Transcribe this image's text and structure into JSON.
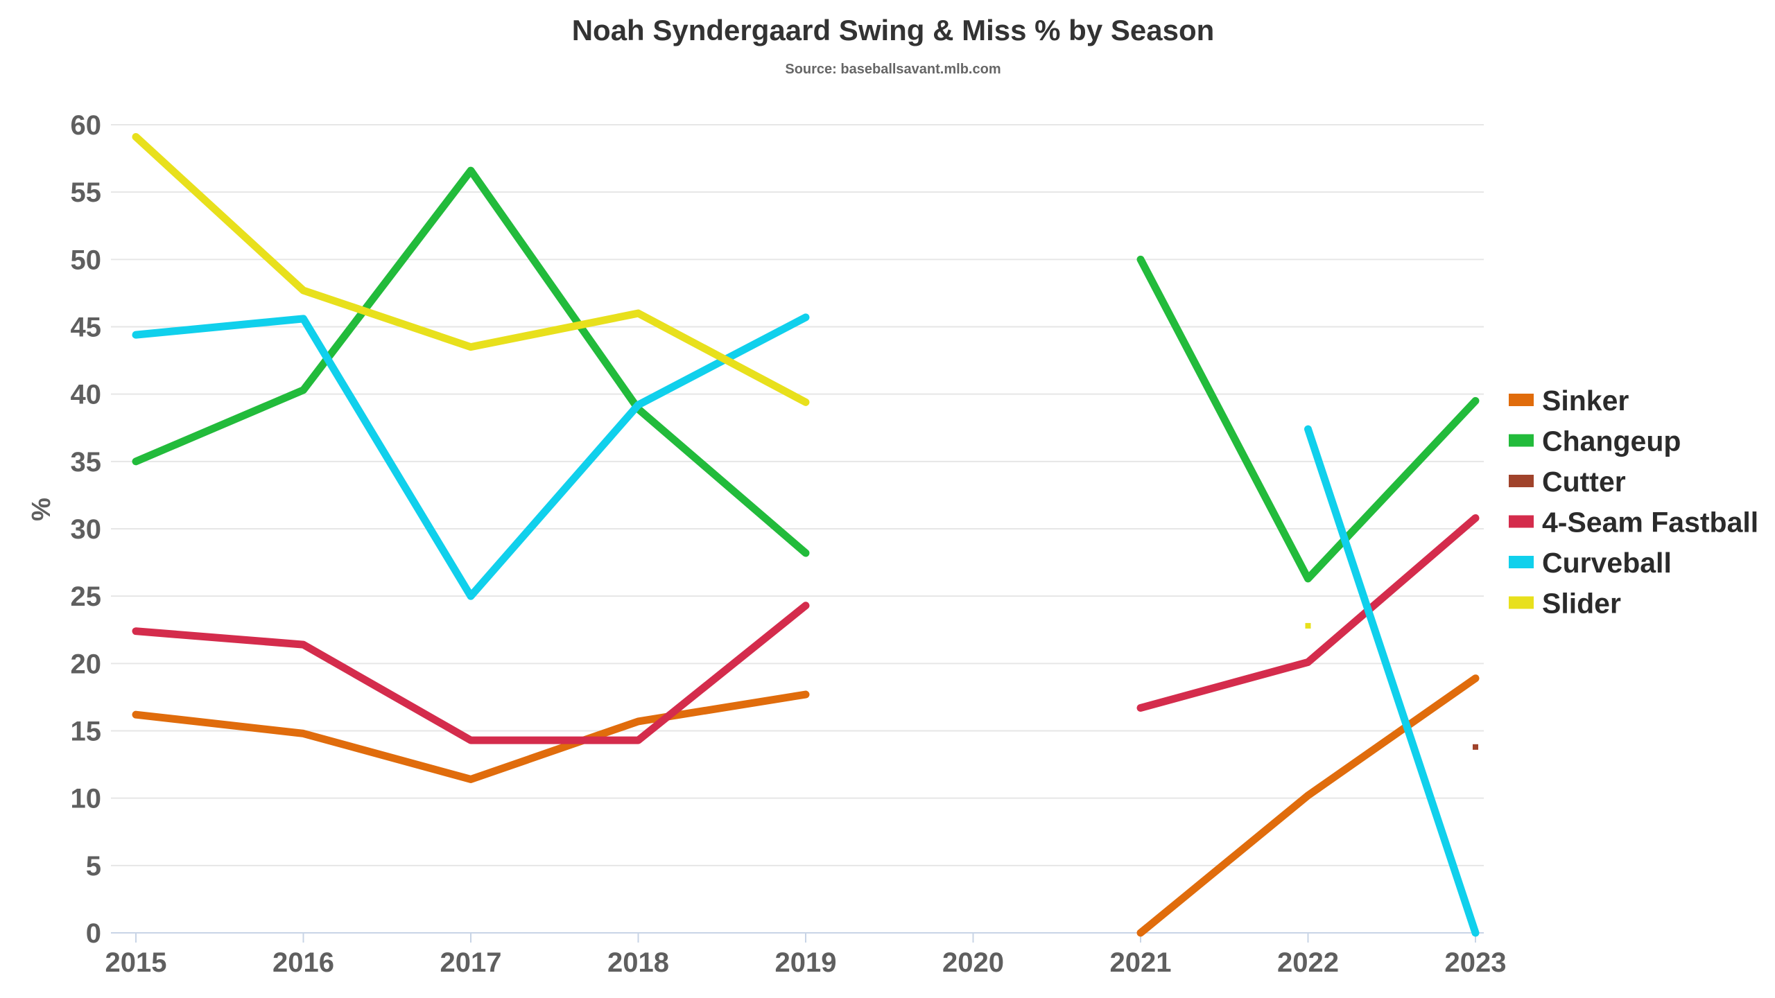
{
  "chart_data": {
    "type": "line",
    "title": "Noah Syndergaard Swing & Miss % by Season",
    "subtitle": "Source: baseballsavant.mlb.com",
    "ylabel": "%",
    "xlabel": "",
    "x": [
      "2015",
      "2016",
      "2017",
      "2018",
      "2019",
      "2020",
      "2021",
      "2022",
      "2023"
    ],
    "yticks": [
      "0",
      "5",
      "10",
      "15",
      "20",
      "25",
      "30",
      "35",
      "40",
      "45",
      "50",
      "55",
      "60"
    ],
    "ylim": [
      0,
      60
    ],
    "grid": true,
    "legend_position": "right",
    "series": [
      {
        "name": "Sinker",
        "color": "#e06c0c",
        "values": [
          16.2,
          14.8,
          11.4,
          15.7,
          17.7,
          null,
          0.0,
          10.2,
          18.9
        ]
      },
      {
        "name": "Changeup",
        "color": "#22bb3b",
        "values": [
          35.0,
          40.3,
          56.6,
          38.9,
          28.2,
          null,
          50.0,
          26.3,
          39.5
        ]
      },
      {
        "name": "Cutter",
        "color": "#a0432b",
        "values": [
          null,
          null,
          null,
          null,
          null,
          null,
          null,
          null,
          13.8
        ]
      },
      {
        "name": "4-Seam Fastball",
        "color": "#d42c4c",
        "values": [
          22.4,
          21.4,
          14.3,
          14.3,
          24.3,
          null,
          16.7,
          20.1,
          30.8
        ]
      },
      {
        "name": "Curveball",
        "color": "#10d0ec",
        "values": [
          44.4,
          45.6,
          25.0,
          39.2,
          45.7,
          null,
          null,
          37.4,
          0.0
        ]
      },
      {
        "name": "Slider",
        "color": "#e8e01c",
        "values": [
          59.1,
          47.7,
          43.5,
          46.0,
          39.4,
          null,
          null,
          22.8,
          null
        ]
      }
    ]
  }
}
